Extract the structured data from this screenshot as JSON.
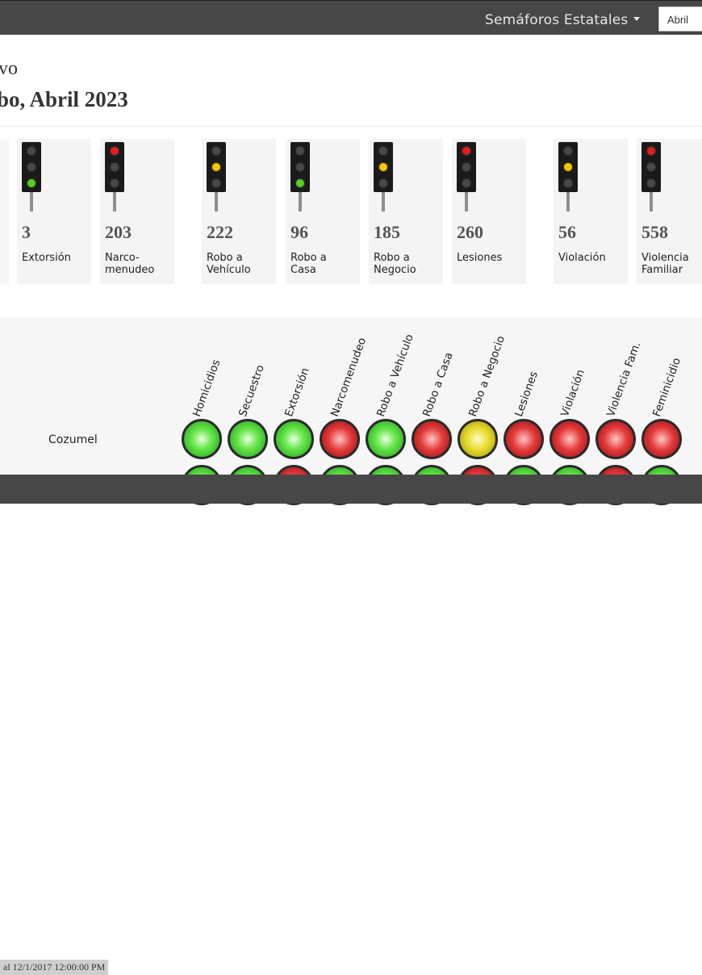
{
  "nav": {
    "menu_label": "Semáforos Estatales",
    "month_value": "Abril"
  },
  "page": {
    "title_partial": "vo",
    "subtitle_partial": "bo, Abril 2023"
  },
  "cards": [
    {
      "count": "3",
      "label": "Extorsión",
      "light": "green"
    },
    {
      "count": "203",
      "label": "Narco-\nmenudeo",
      "light": "red"
    },
    {
      "count": "222",
      "label": "Robo a\nVehículo",
      "light": "yellow"
    },
    {
      "count": "96",
      "label": "Robo a\nCasa",
      "light": "green"
    },
    {
      "count": "185",
      "label": "Robo a\nNegocio",
      "light": "yellow"
    },
    {
      "count": "260",
      "label": "Lesiones",
      "light": "red"
    },
    {
      "count": "56",
      "label": "Violación",
      "light": "yellow"
    },
    {
      "count": "558",
      "label": "Violencia\nFamiliar",
      "light": "red"
    }
  ],
  "matrix": {
    "columns": [
      "Homicidios",
      "Secuestro",
      "Extorsión",
      "Narcomenudeo",
      "Robo a Vehículo",
      "Robo a Casa",
      "Robo a Negocio",
      "Lesiones",
      "Violación",
      "Violencia Fam.",
      "Feminicidio"
    ],
    "rows": [
      {
        "name": "Cozumel",
        "lights": [
          "green",
          "green",
          "green",
          "red",
          "green",
          "red",
          "yellow",
          "red",
          "red",
          "red",
          "red"
        ]
      }
    ],
    "partial_row_lights": [
      "green",
      "green",
      "red",
      "green",
      "green",
      "green",
      "red",
      "green",
      "green",
      "red",
      "green"
    ]
  },
  "footer": {
    "note": "al 12/1/2017 12:00:00 PM"
  }
}
